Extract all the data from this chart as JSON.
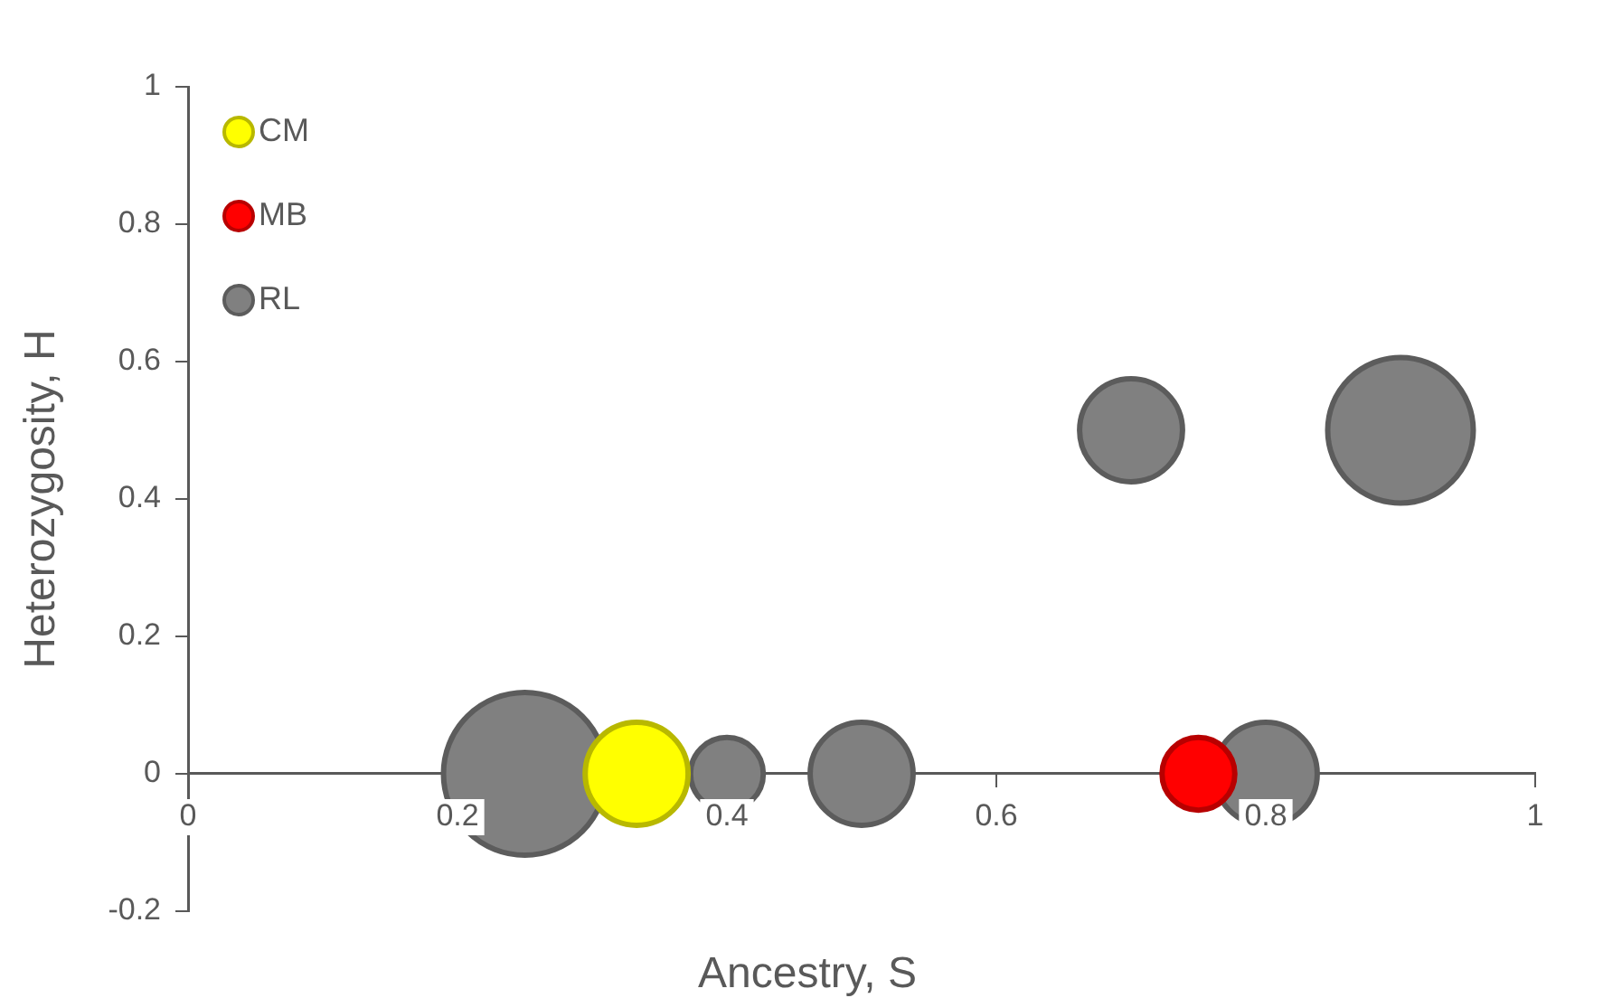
{
  "chart_data": {
    "type": "bubble",
    "xlabel": "Ancestry, S",
    "ylabel": "Heterozygosity, H",
    "xlim": [
      0,
      1
    ],
    "xticks": [
      0,
      0.2,
      0.4,
      0.6,
      0.8,
      1
    ],
    "ylim": [
      -0.2,
      1
    ],
    "yticks": [
      -0.2,
      0,
      0.2,
      0.4,
      0.6,
      0.8,
      1
    ],
    "grid": false,
    "legend": "top left",
    "series": [
      {
        "name": "CM",
        "color": "#ffff00",
        "x": [
          0.333
        ],
        "values": [
          0
        ],
        "sizes": [
          0.4
        ]
      },
      {
        "name": "MB",
        "color": "#ff0000",
        "x": [
          0.75
        ],
        "values": [
          0
        ],
        "sizes": [
          0.2
        ]
      },
      {
        "name": "RL",
        "color": "#808080",
        "x": [
          0.25,
          0.4,
          0.5,
          0.8,
          0.7,
          0.9
        ],
        "values": [
          0,
          0,
          0,
          0,
          0.5,
          0.5
        ],
        "sizes": [
          1,
          0.2,
          0.4,
          0.4,
          0.4,
          0.8
        ]
      }
    ]
  }
}
